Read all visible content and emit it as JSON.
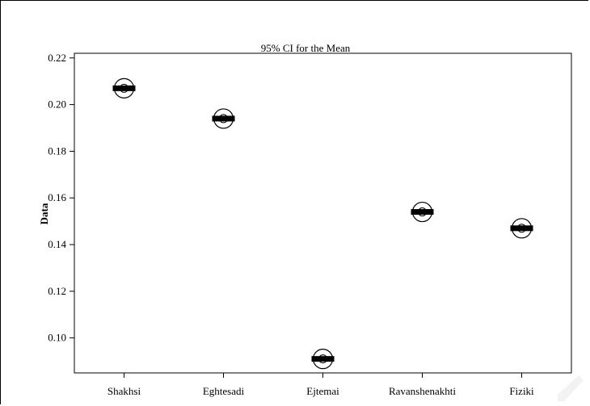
{
  "chart_data": {
    "type": "scatter",
    "title": "95% CI for the Mean",
    "ylabel": "Data",
    "xlabel": "",
    "categories": [
      "Shakhsi",
      "Eghtesadi",
      "Ejtemai",
      "Ravanshenakhti",
      "Fiziki"
    ],
    "values": [
      0.207,
      0.194,
      0.091,
      0.154,
      0.147
    ],
    "ylim": [
      0.085,
      0.222
    ],
    "yticks": [
      0.1,
      0.12,
      0.14,
      0.16,
      0.18,
      0.2,
      0.22
    ],
    "ytick_labels": [
      "0.10",
      "0.12",
      "0.14",
      "0.16",
      "0.18",
      "0.20",
      "0.22"
    ],
    "grid": false,
    "marker": "circle-with-dot",
    "ci_bar_color": "#000000"
  }
}
